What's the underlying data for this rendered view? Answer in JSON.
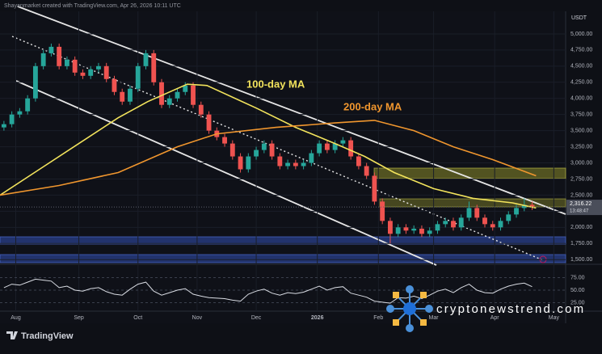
{
  "chart_data": {
    "type": "candlestick",
    "header": "Shayanmarket created with TradingView.com, Apr 26, 2026 10:11 UTC",
    "unit": "USDT",
    "brand": "TradingView",
    "watermark": "cryptonewstrend.com",
    "up_color": "#26a69a",
    "down_color": "#ef5350",
    "grid": true,
    "xlim": [
      0,
      287
    ],
    "xticks": [
      {
        "value": 8,
        "label": "Aug"
      },
      {
        "value": 40,
        "label": "Sep"
      },
      {
        "value": 70,
        "label": "Oct"
      },
      {
        "value": 100,
        "label": "Nov"
      },
      {
        "value": 130,
        "label": "Dec"
      },
      {
        "value": 161,
        "label": "2026"
      },
      {
        "value": 192,
        "label": "Feb"
      },
      {
        "value": 220,
        "label": "Mar"
      },
      {
        "value": 251,
        "label": "Apr"
      },
      {
        "value": 281,
        "label": "May"
      }
    ],
    "ylim": [
      1440,
      5275
    ],
    "yticks": [
      {
        "value": 1500,
        "label": "1,500.00"
      },
      {
        "value": 1750,
        "label": "1,750.00"
      },
      {
        "value": 2000,
        "label": "2,000.00"
      },
      {
        "value": 2250,
        "label": "2,250.00"
      },
      {
        "value": 2500,
        "label": "2,500.00"
      },
      {
        "value": 2750,
        "label": "2,750.00"
      },
      {
        "value": 3000,
        "label": "3,000.00"
      },
      {
        "value": 3250,
        "label": "3,250.00"
      },
      {
        "value": 3500,
        "label": "3,500.00"
      },
      {
        "value": 3750,
        "label": "3,750.00"
      },
      {
        "value": 4000,
        "label": "4,000.00"
      },
      {
        "value": 4250,
        "label": "4,250.00"
      },
      {
        "value": 4500,
        "label": "4,500.00"
      },
      {
        "value": 4750,
        "label": "4,750.00"
      },
      {
        "value": 5000,
        "label": "5,000.00"
      }
    ],
    "x": [
      2,
      6,
      10,
      14,
      18,
      22,
      26,
      30,
      34,
      38,
      42,
      46,
      50,
      54,
      58,
      62,
      66,
      70,
      74,
      78,
      82,
      86,
      90,
      94,
      98,
      102,
      106,
      110,
      114,
      118,
      122,
      126,
      130,
      134,
      138,
      142,
      146,
      150,
      154,
      158,
      162,
      166,
      170,
      174,
      178,
      182,
      186,
      190,
      194,
      198,
      202,
      206,
      210,
      214,
      218,
      222,
      226,
      230,
      234,
      238,
      242,
      246,
      250,
      254,
      258,
      262,
      266,
      270
    ],
    "open": [
      3550,
      3600,
      3750,
      3800,
      4000,
      4500,
      4700,
      4800,
      4500,
      4600,
      4400,
      4350,
      4450,
      4500,
      4300,
      4100,
      3950,
      4150,
      4500,
      4700,
      4250,
      3900,
      4000,
      4100,
      4200,
      3900,
      3750,
      3500,
      3400,
      3300,
      3100,
      2900,
      3100,
      3200,
      3300,
      3100,
      2950,
      3000,
      2950,
      3000,
      3150,
      3300,
      3200,
      3300,
      3350,
      3100,
      2950,
      2800,
      2400,
      2100,
      1900,
      2000,
      1950,
      1980,
      1900,
      1950,
      2050,
      2100,
      2000,
      2150,
      2300,
      2150,
      2050,
      2000,
      2100,
      2200,
      2300,
      2350
    ],
    "high": [
      3650,
      3800,
      3850,
      4050,
      4550,
      4750,
      4850,
      4850,
      4650,
      4650,
      4450,
      4500,
      4550,
      4550,
      4350,
      4150,
      4200,
      4550,
      4750,
      4750,
      4300,
      4050,
      4150,
      4250,
      4250,
      3950,
      3800,
      3550,
      3450,
      3350,
      3150,
      3150,
      3250,
      3350,
      3350,
      3150,
      3050,
      3050,
      3050,
      3200,
      3350,
      3350,
      3350,
      3400,
      3400,
      3150,
      3000,
      2850,
      2450,
      2150,
      2050,
      2050,
      2030,
      2030,
      2000,
      2100,
      2150,
      2150,
      2200,
      2400,
      2350,
      2200,
      2100,
      2150,
      2250,
      2350,
      2450,
      2400
    ],
    "low": [
      3500,
      3550,
      3700,
      3750,
      3950,
      4450,
      4650,
      4450,
      4450,
      4350,
      4300,
      4300,
      4400,
      4250,
      4050,
      3900,
      3900,
      4100,
      4450,
      4200,
      3850,
      3850,
      3950,
      4050,
      3850,
      3700,
      3450,
      3350,
      3250,
      3050,
      2850,
      2850,
      3050,
      3150,
      3050,
      2900,
      2900,
      2900,
      2900,
      2950,
      3100,
      3150,
      3150,
      3250,
      3050,
      2900,
      2750,
      2350,
      2050,
      1750,
      1850,
      1900,
      1900,
      1850,
      1850,
      1900,
      2000,
      1950,
      1950,
      2100,
      2100,
      2000,
      1950,
      1950,
      2050,
      2150,
      2250,
      2270
    ],
    "close": [
      3600,
      3750,
      3800,
      4000,
      4500,
      4700,
      4800,
      4500,
      4600,
      4400,
      4350,
      4450,
      4500,
      4300,
      4100,
      3950,
      4150,
      4500,
      4700,
      4250,
      3900,
      4000,
      4100,
      4200,
      3900,
      3750,
      3500,
      3400,
      3300,
      3100,
      2900,
      3100,
      3200,
      3300,
      3100,
      2950,
      3000,
      2950,
      3000,
      3150,
      3300,
      3200,
      3300,
      3350,
      3100,
      2950,
      2800,
      2400,
      2100,
      1900,
      2000,
      1950,
      1980,
      1900,
      1950,
      2050,
      2100,
      2000,
      2150,
      2300,
      2150,
      2050,
      2000,
      2100,
      2200,
      2300,
      2350,
      2316.22
    ],
    "last_price": {
      "value": 2316.22,
      "label": "2,316.22"
    },
    "countdown": "13:48:47",
    "series": [
      {
        "name": "100-day MA",
        "color": "#f2e35c",
        "x": [
          0,
          20,
          40,
          60,
          75,
          95,
          105,
          130,
          150,
          170,
          185,
          200,
          220,
          240,
          260,
          272
        ],
        "values": [
          2500,
          2900,
          3300,
          3700,
          3950,
          4220,
          4200,
          3850,
          3550,
          3300,
          3100,
          2850,
          2600,
          2450,
          2380,
          2300
        ]
      },
      {
        "name": "200-day MA",
        "color": "#f0962e",
        "x": [
          0,
          30,
          60,
          90,
          110,
          140,
          170,
          190,
          210,
          230,
          250,
          272
        ],
        "values": [
          2500,
          2650,
          2850,
          3250,
          3450,
          3550,
          3620,
          3660,
          3500,
          3250,
          3050,
          2800
        ]
      }
    ],
    "rsi": {
      "color": "#d9dce3",
      "ylim": [
        0,
        100
      ],
      "yticks": [
        {
          "value": 25,
          "label": "25.00"
        },
        {
          "value": 50,
          "label": "50.00"
        },
        {
          "value": 75,
          "label": "75.00"
        }
      ],
      "values": [
        55,
        62,
        60,
        66,
        72,
        70,
        68,
        55,
        58,
        50,
        48,
        53,
        55,
        47,
        42,
        40,
        52,
        62,
        66,
        48,
        40,
        45,
        50,
        53,
        42,
        38,
        35,
        34,
        33,
        30,
        28,
        42,
        48,
        52,
        44,
        40,
        45,
        43,
        46,
        52,
        58,
        50,
        55,
        57,
        44,
        40,
        36,
        28,
        26,
        24,
        35,
        34,
        38,
        33,
        40,
        48,
        52,
        45,
        55,
        62,
        50,
        45,
        44,
        52,
        58,
        62,
        64,
        57
      ]
    }
  }
}
